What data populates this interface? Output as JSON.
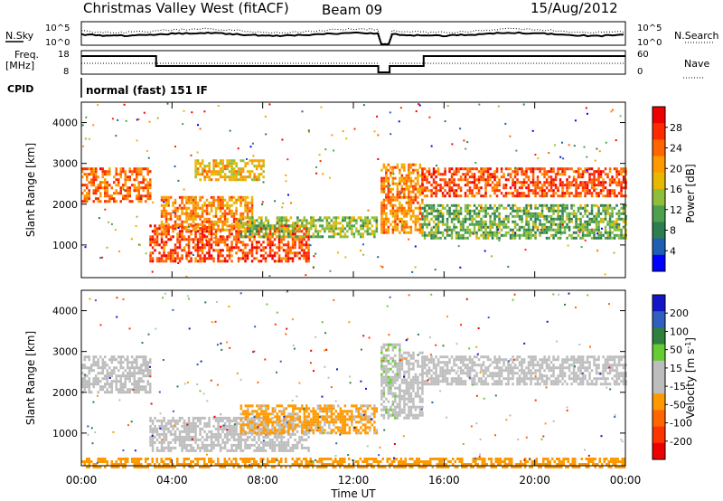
{
  "header": {
    "station": "Christmas Valley West (fitACF)",
    "beam": "Beam 09",
    "date": "15/Aug/2012"
  },
  "summary_panels": {
    "noise": {
      "left_label": "N.Sky",
      "right_label": "N.Search",
      "left_ticks": [
        "10^5",
        "10^0"
      ],
      "right_ticks": [
        "10^5",
        "10^0"
      ]
    },
    "freq": {
      "left_label_1": "Freq.",
      "left_label_2": "[MHz]",
      "right_label": "Nave",
      "left_ticks": [
        "18",
        "8"
      ],
      "right_ticks": [
        "60",
        "0"
      ]
    },
    "cpid": {
      "label": "CPID",
      "text": "normal (fast) 151 IF"
    }
  },
  "colors": {
    "power_scale": [
      "#0000ff",
      "#1e5fb4",
      "#2e7d4f",
      "#4da14d",
      "#8fbf3a",
      "#e6b800",
      "#ff9900",
      "#ff6600",
      "#ff2a00",
      "#ee0000"
    ],
    "velocity_scale": [
      "#1515c8",
      "#2f5fbf",
      "#2f7f3f",
      "#66cc33",
      "#bdbdbd",
      "#bdbdbd",
      "#ff9900",
      "#ff6600",
      "#ff3300",
      "#ee0000"
    ],
    "ground_scatter": "#bebebe"
  },
  "chart_data": [
    {
      "type": "heatmap",
      "panel": "power",
      "ylabel": "Slant Range [km]",
      "yticks": [
        "1000",
        "2000",
        "3000",
        "4000"
      ],
      "ylim": [
        200,
        4500
      ],
      "xlim": [
        0,
        24
      ],
      "colorbar_label": "Power [dB]",
      "colorbar_ticks": [
        "4",
        "8",
        "12",
        "16",
        "20",
        "24",
        "28"
      ],
      "colorbar_range": [
        0,
        32
      ],
      "bands": [
        {
          "t0": 0.0,
          "t1": 3.0,
          "r0": 2100,
          "r1": 2900,
          "level": 24
        },
        {
          "t0": 3.0,
          "t1": 10.0,
          "r0": 600,
          "r1": 1500,
          "level": 26
        },
        {
          "t0": 3.5,
          "t1": 7.5,
          "r0": 1400,
          "r1": 2200,
          "level": 22
        },
        {
          "t0": 7.0,
          "t1": 13.0,
          "r0": 1200,
          "r1": 1700,
          "level": 14
        },
        {
          "t0": 5.0,
          "t1": 8.0,
          "r0": 2600,
          "r1": 3100,
          "level": 18
        },
        {
          "t0": 13.2,
          "t1": 15.0,
          "r0": 1300,
          "r1": 3000,
          "level": 22
        },
        {
          "t0": 15.0,
          "t1": 24.0,
          "r0": 2200,
          "r1": 2900,
          "level": 26
        },
        {
          "t0": 15.0,
          "t1": 24.0,
          "r0": 1200,
          "r1": 2000,
          "level": 12
        }
      ]
    },
    {
      "type": "heatmap",
      "panel": "velocity",
      "ylabel": "Slant Range [km]",
      "yticks": [
        "1000",
        "2000",
        "3000",
        "4000"
      ],
      "ylim": [
        200,
        4500
      ],
      "xlim": [
        0,
        24
      ],
      "xlabel": "Time UT",
      "xticks": [
        "00:00",
        "04:00",
        "08:00",
        "12:00",
        "16:00",
        "20:00",
        "00:00"
      ],
      "colorbar_label": "Velocity [m s^-1]",
      "colorbar_ticks": [
        "200",
        "100",
        "50",
        "15",
        "-15",
        "-50",
        "-100",
        "-200"
      ],
      "colorbar_range": [
        -250,
        250
      ],
      "bands": [
        {
          "t0": 0.0,
          "t1": 3.0,
          "r0": 2000,
          "r1": 2900,
          "level": 0
        },
        {
          "t0": 3.0,
          "t1": 10.0,
          "r0": 600,
          "r1": 1400,
          "level": 0
        },
        {
          "t0": 7.0,
          "t1": 13.0,
          "r0": 1000,
          "r1": 1700,
          "level": -60
        },
        {
          "t0": 13.2,
          "t1": 14.0,
          "r0": 1400,
          "r1": 3200,
          "level": 40
        },
        {
          "t0": 14.0,
          "t1": 15.0,
          "r0": 1400,
          "r1": 3000,
          "level": 0
        },
        {
          "t0": 15.0,
          "t1": 24.0,
          "r0": 2200,
          "r1": 2900,
          "level": 0
        },
        {
          "t0": 0.0,
          "t1": 24.0,
          "r0": 200,
          "r1": 400,
          "level": -80
        }
      ]
    }
  ]
}
